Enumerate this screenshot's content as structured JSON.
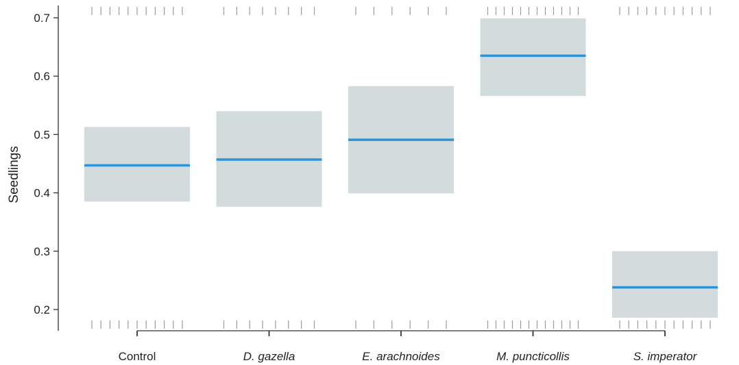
{
  "chart_data": {
    "type": "box",
    "xlabel": "",
    "ylabel": "Seedlings",
    "ylim": [
      0.18,
      0.71
    ],
    "yticks": [
      0.2,
      0.3,
      0.4,
      0.5,
      0.6,
      0.7
    ],
    "ytick_labels": [
      "0.2",
      "0.3",
      "0.4",
      "0.5",
      "0.6",
      "0.7"
    ],
    "categories": [
      "Control",
      "D. gazella",
      "E. arachnoides",
      "M. puncticollis",
      "S. imperator"
    ],
    "category_italic": [
      false,
      true,
      true,
      true,
      true
    ],
    "estimates": [
      0.447,
      0.457,
      0.491,
      0.635,
      0.238
    ],
    "lower": [
      0.385,
      0.376,
      0.399,
      0.566,
      0.186
    ],
    "upper": [
      0.513,
      0.54,
      0.583,
      0.699,
      0.3
    ],
    "rug_counts": [
      11,
      8,
      6,
      12,
      11
    ],
    "grid": false,
    "legend": "none",
    "colors": {
      "band": "#d3dcdc",
      "line": "#2b93d6",
      "axis": "#333333",
      "rug": "#9a9a9a"
    }
  }
}
